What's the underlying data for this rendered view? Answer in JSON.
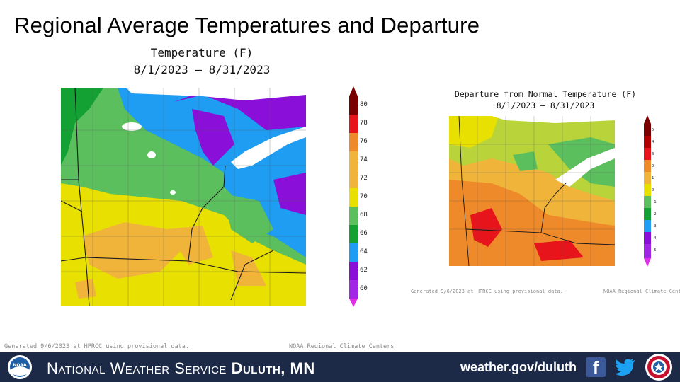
{
  "slide": {
    "title": "Regional Average Temperatures and Departure"
  },
  "temperature_map": {
    "title": "Temperature (F)",
    "date_range": "8/1/2023 – 8/31/2023",
    "colorbar_labels": [
      "80",
      "78",
      "76",
      "74",
      "72",
      "70",
      "68",
      "66",
      "64",
      "62",
      "60"
    ],
    "colorbar_colors": [
      "#7a0000",
      "#e8141c",
      "#ef8a2a",
      "#f0b43a",
      "#e8e000",
      "#5cbf5e",
      "#13a133",
      "#1e9df2",
      "#8a0fd8",
      "#a226e6"
    ],
    "credit_left": "Generated 9/6/2023 at HPRCC using provisional data.",
    "credit_right": "NOAA Regional Climate Centers"
  },
  "departure_map": {
    "title": "Departure from Normal Temperature (F)",
    "date_range": "8/1/2023 – 8/31/2023",
    "colorbar_labels": [
      "5",
      "4",
      "3",
      "2",
      "1",
      "0",
      "-1",
      "-2",
      "-3",
      "-4",
      "-5"
    ],
    "credit_left": "Generated 9/6/2023 at HPRCC using provisional data.",
    "credit_right": "NOAA Regional Climate Centers"
  },
  "footer": {
    "org_text": "National Weather Service",
    "office_text": "Duluth, MN",
    "url": "weather.gov/duluth",
    "facebook_icon": "facebook-icon",
    "twitter_icon": "twitter-icon",
    "noaa_logo": "noaa-logo",
    "nws_logo": "nws-logo",
    "background_color": "#1c2a48"
  }
}
